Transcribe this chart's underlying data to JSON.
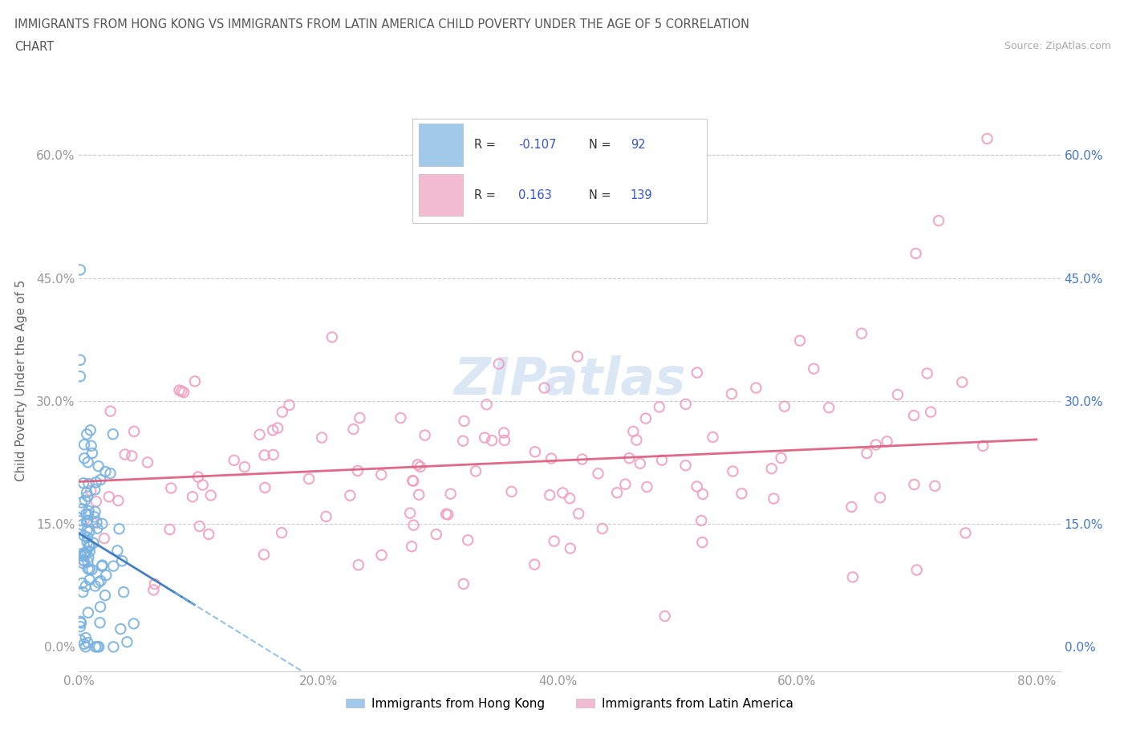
{
  "title_line1": "IMMIGRANTS FROM HONG KONG VS IMMIGRANTS FROM LATIN AMERICA CHILD POVERTY UNDER THE AGE OF 5 CORRELATION",
  "title_line2": "CHART",
  "source": "Source: ZipAtlas.com",
  "ylabel": "Child Poverty Under the Age of 5",
  "xlim": [
    0.0,
    0.82
  ],
  "ylim": [
    -0.03,
    0.68
  ],
  "xticks": [
    0.0,
    0.2,
    0.4,
    0.6,
    0.8
  ],
  "xtick_labels": [
    "0.0%",
    "20.0%",
    "40.0%",
    "60.0%",
    "80.0%"
  ],
  "yticks": [
    0.0,
    0.15,
    0.3,
    0.45,
    0.6
  ],
  "ytick_labels": [
    "0.0%",
    "15.0%",
    "30.0%",
    "45.0%",
    "60.0%"
  ],
  "hk_color": "#7ab3e0",
  "la_color": "#f0a0c0",
  "hk_line_color": "#3a7abf",
  "la_line_color": "#e06080",
  "hk_R": -0.107,
  "hk_N": 92,
  "la_R": 0.163,
  "la_N": 139,
  "legend_label_hk": "Immigrants from Hong Kong",
  "legend_label_la": "Immigrants from Latin America",
  "watermark": "ZIPatlas",
  "background_color": "#ffffff",
  "tick_color_left": "#999999",
  "tick_color_right": "#4477cc",
  "grid_color": "#cccccc",
  "title_color": "#555555",
  "source_color": "#aaaaaa"
}
